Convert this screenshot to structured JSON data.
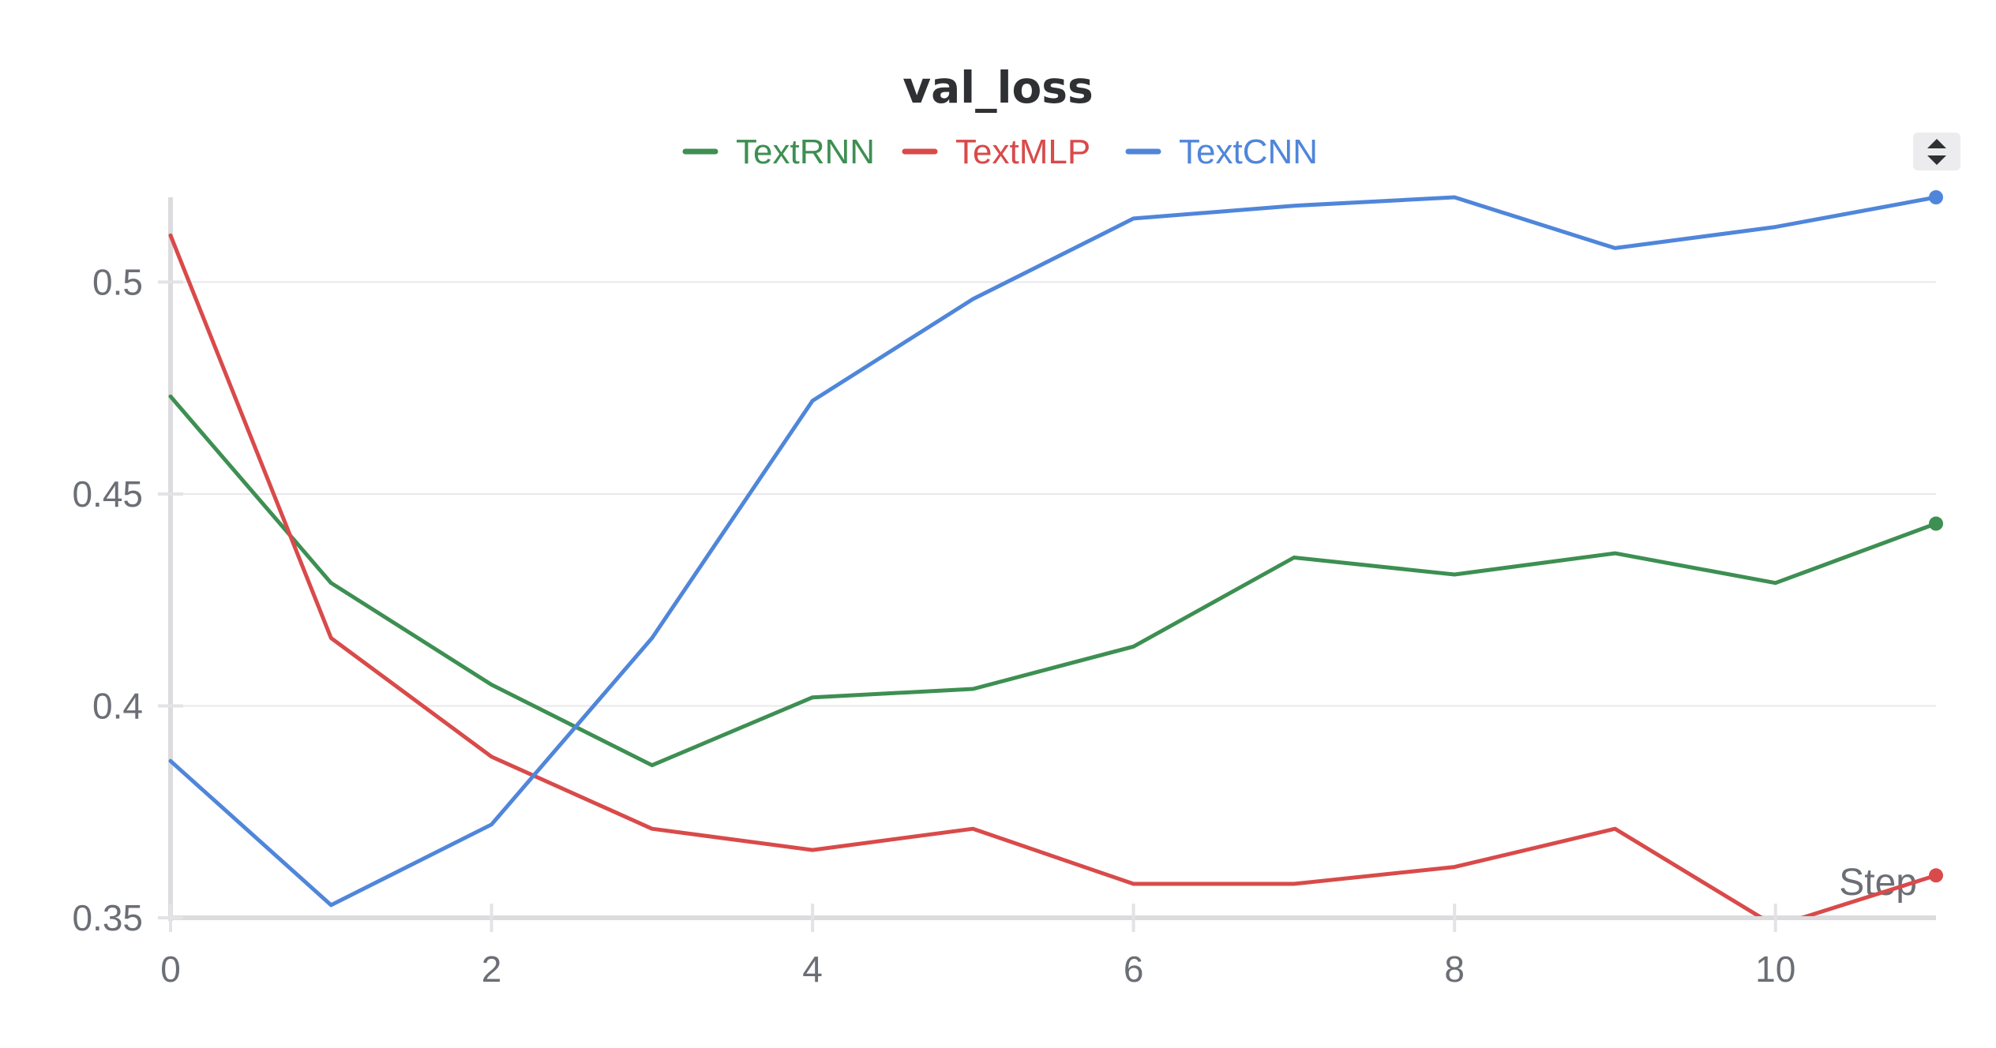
{
  "chart_data": {
    "type": "line",
    "title": "val_loss",
    "xlabel": "Step",
    "ylabel": "",
    "xlim": [
      0,
      11
    ],
    "ylim": [
      0.35,
      0.52
    ],
    "x_ticks": [
      0,
      2,
      4,
      6,
      8,
      10
    ],
    "x_tick_labels": [
      "0",
      "2",
      "4",
      "6",
      "8",
      "10"
    ],
    "y_ticks": [
      0.35,
      0.4,
      0.45,
      0.5
    ],
    "y_tick_labels": [
      "0.35",
      "0.4",
      "0.45",
      "0.5"
    ],
    "grid": true,
    "legend_position": "top-center",
    "x": [
      0,
      1,
      2,
      3,
      4,
      5,
      6,
      7,
      8,
      9,
      10,
      11
    ],
    "series": [
      {
        "name": "TextRNN",
        "color": "#3d8f52",
        "values": [
          0.473,
          0.429,
          0.405,
          0.386,
          0.402,
          0.404,
          0.414,
          0.435,
          0.431,
          0.436,
          0.429,
          0.443
        ]
      },
      {
        "name": "TextMLP",
        "color": "#d94a4a",
        "values": [
          0.511,
          0.416,
          0.388,
          0.371,
          0.366,
          0.371,
          0.358,
          0.358,
          0.362,
          0.371,
          0.348,
          0.36
        ]
      },
      {
        "name": "TextCNN",
        "color": "#4f86da",
        "values": [
          0.387,
          0.353,
          0.372,
          0.416,
          0.472,
          0.496,
          0.515,
          0.518,
          0.52,
          0.508,
          0.513,
          0.52
        ]
      }
    ]
  },
  "controls": {
    "legend_scroll_icon": "up-down-arrows-icon"
  }
}
